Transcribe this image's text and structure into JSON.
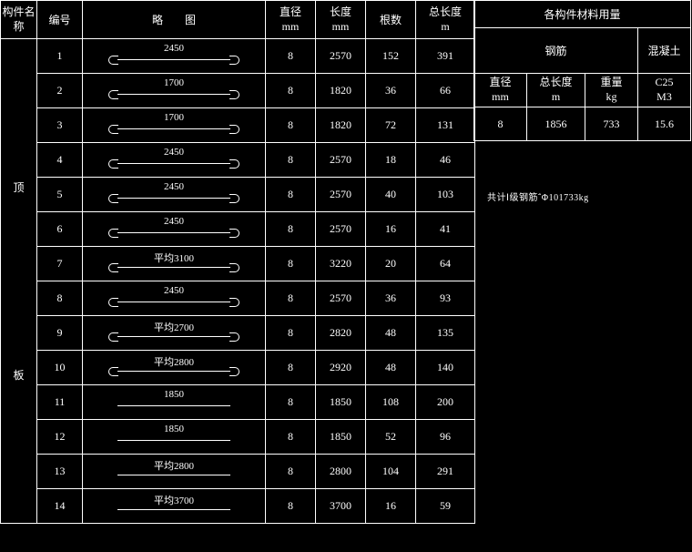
{
  "headers": {
    "component_name": "构件名称",
    "id": "编号",
    "sketch": "略　　图",
    "diameter": "直径",
    "length": "长度",
    "count": "根数",
    "total_len": "总长度",
    "mm": "mm",
    "m": "m",
    "materials_title": "各构件材料用量",
    "rebar": "钢筋",
    "concrete": "混凝土",
    "diameter2": "直径",
    "total_len2": "总长度",
    "weight": "重量",
    "kg": "kg",
    "grade": "C25",
    "vol_unit": "M3"
  },
  "vert_labels": {
    "top": "顶",
    "bottom": "板"
  },
  "rows": [
    {
      "n": "1",
      "sk": "2450",
      "shape": "hook",
      "d": "8",
      "l": "2570",
      "c": "152",
      "tl": "391"
    },
    {
      "n": "2",
      "sk": "1700",
      "shape": "hook",
      "d": "8",
      "l": "1820",
      "c": "36",
      "tl": "66"
    },
    {
      "n": "3",
      "sk": "1700",
      "shape": "hook",
      "d": "8",
      "l": "1820",
      "c": "72",
      "tl": "131"
    },
    {
      "n": "4",
      "sk": "2450",
      "shape": "hook",
      "d": "8",
      "l": "2570",
      "c": "18",
      "tl": "46"
    },
    {
      "n": "5",
      "sk": "2450",
      "shape": "hook",
      "d": "8",
      "l": "2570",
      "c": "40",
      "tl": "103"
    },
    {
      "n": "6",
      "sk": "2450",
      "shape": "hook",
      "d": "8",
      "l": "2570",
      "c": "16",
      "tl": "41"
    },
    {
      "n": "7",
      "sk": "平均3100",
      "shape": "hook",
      "d": "8",
      "l": "3220",
      "c": "20",
      "tl": "64"
    },
    {
      "n": "8",
      "sk": "2450",
      "shape": "hook",
      "d": "8",
      "l": "2570",
      "c": "36",
      "tl": "93"
    },
    {
      "n": "9",
      "sk": "平均2700",
      "shape": "hook",
      "d": "8",
      "l": "2820",
      "c": "48",
      "tl": "135"
    },
    {
      "n": "10",
      "sk": "平均2800",
      "shape": "hook",
      "d": "8",
      "l": "2920",
      "c": "48",
      "tl": "140"
    },
    {
      "n": "11",
      "sk": "1850",
      "shape": "flat",
      "d": "8",
      "l": "1850",
      "c": "108",
      "tl": "200"
    },
    {
      "n": "12",
      "sk": "1850",
      "shape": "flat",
      "d": "8",
      "l": "1850",
      "c": "52",
      "tl": "96"
    },
    {
      "n": "13",
      "sk": "平均2800",
      "shape": "flat",
      "d": "8",
      "l": "2800",
      "c": "104",
      "tl": "291"
    },
    {
      "n": "14",
      "sk": "平均3700",
      "shape": "flat",
      "d": "8",
      "l": "3700",
      "c": "16",
      "tl": "59"
    }
  ],
  "right": {
    "d": "8",
    "tl": "1856",
    "w": "733",
    "conc": "15.6"
  },
  "note": "共计Ⅰ级钢筋΅Φ101733kg"
}
